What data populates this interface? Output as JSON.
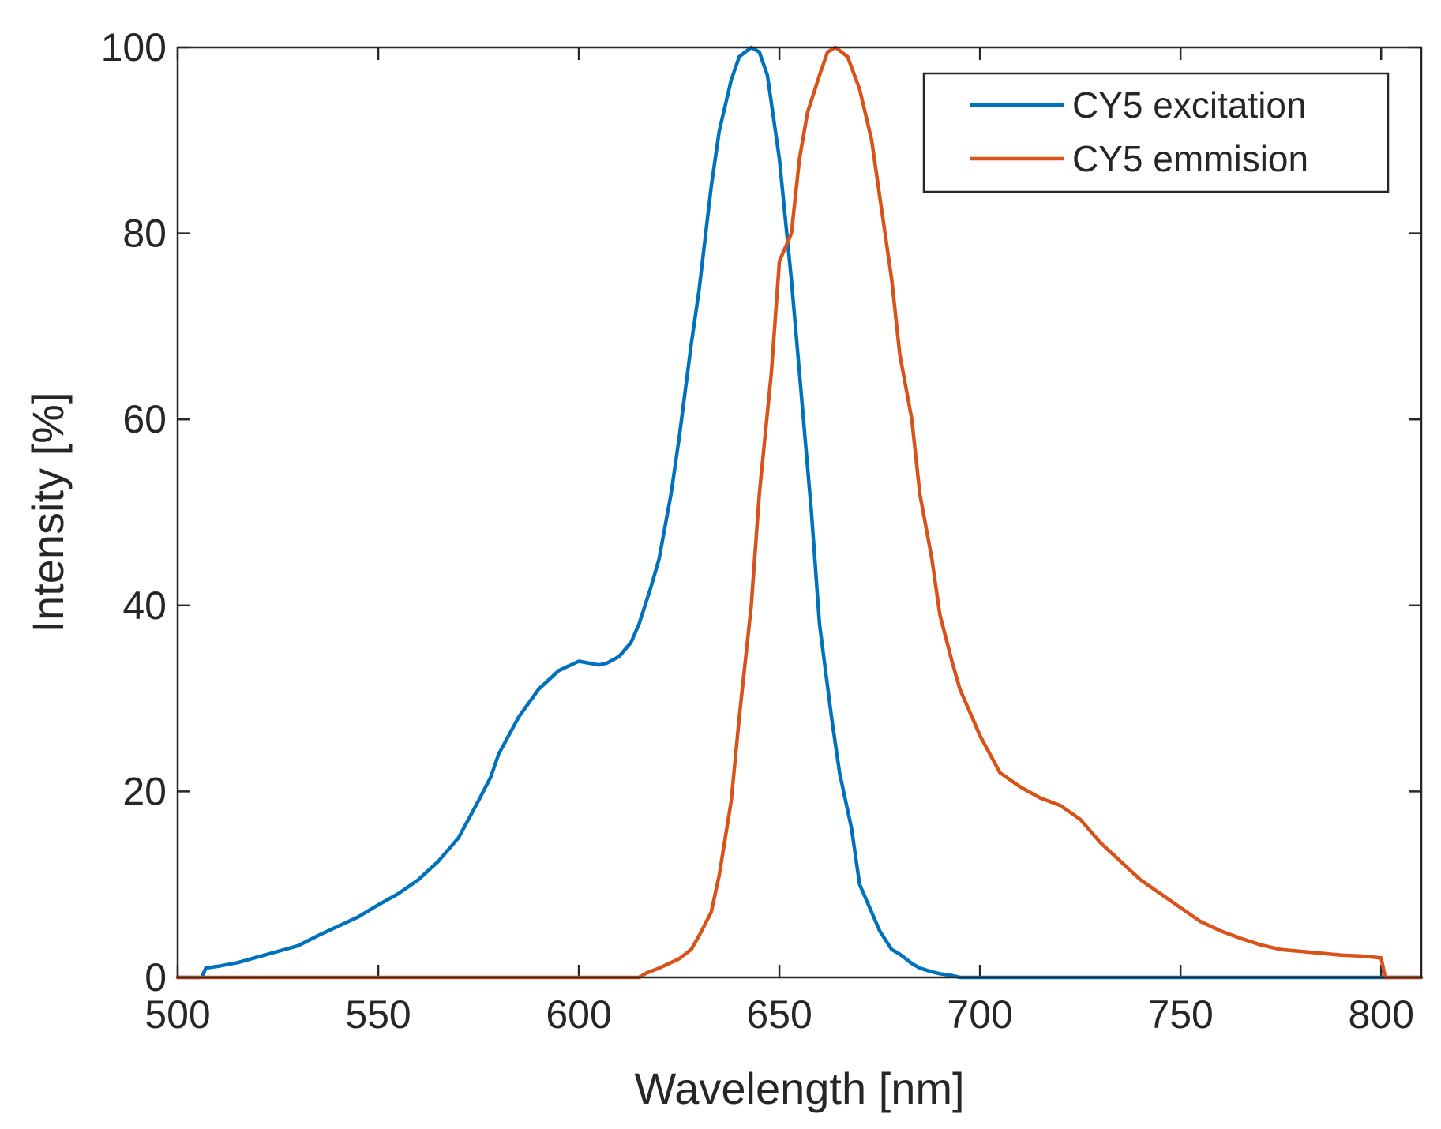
{
  "chart_data": {
    "type": "line",
    "title": "",
    "xlabel": "Wavelength [nm]",
    "ylabel": "Intensity [%]",
    "xlim": [
      500,
      810
    ],
    "ylim": [
      0,
      100
    ],
    "xticks": [
      500,
      550,
      600,
      650,
      700,
      750,
      800
    ],
    "yticks": [
      0,
      20,
      40,
      60,
      80,
      100
    ],
    "xtick_labels": [
      "500",
      "550",
      "600",
      "650",
      "700",
      "750",
      "800"
    ],
    "ytick_labels": [
      "0",
      "20",
      "40",
      "60",
      "80",
      "100"
    ],
    "grid": false,
    "legend_position": "top-right",
    "series": [
      {
        "name": "CY5 excitation",
        "color": "#0072BD",
        "x": [
          500,
          506,
          507,
          510,
          515,
          520,
          525,
          530,
          535,
          540,
          545,
          550,
          555,
          560,
          565,
          570,
          575,
          578,
          580,
          585,
          590,
          595,
          600,
          605,
          607,
          610,
          613,
          615,
          618,
          620,
          623,
          625,
          628,
          630,
          633,
          635,
          638,
          640,
          643,
          645,
          647,
          650,
          653,
          655,
          658,
          660,
          663,
          665,
          668,
          670,
          673,
          675,
          678,
          680,
          683,
          685,
          688,
          690,
          693,
          695,
          700,
          750,
          800,
          810
        ],
        "y": [
          0,
          0,
          1,
          1.2,
          1.6,
          2.2,
          2.8,
          3.4,
          4.5,
          5.5,
          6.5,
          7.8,
          9,
          10.5,
          12.5,
          15,
          19,
          21.5,
          24,
          28,
          31,
          33,
          34,
          33.6,
          33.8,
          34.5,
          36,
          38,
          42,
          45,
          52,
          58,
          68,
          74,
          85,
          91,
          96.5,
          99,
          100,
          99.5,
          97,
          88,
          75,
          65,
          50,
          38,
          28,
          22,
          16,
          10,
          7,
          5,
          3,
          2.5,
          1.5,
          1,
          0.6,
          0.4,
          0.2,
          0,
          0,
          0,
          0,
          0
        ]
      },
      {
        "name": "CY5 emmision",
        "color": "#D95319",
        "x": [
          500,
          550,
          600,
          615,
          617,
          620,
          625,
          628,
          630,
          633,
          635,
          638,
          640,
          643,
          645,
          648,
          650,
          653,
          655,
          657,
          660,
          662,
          664,
          667,
          670,
          673,
          675,
          678,
          680,
          683,
          685,
          688,
          690,
          693,
          695,
          698,
          700,
          705,
          710,
          715,
          720,
          725,
          730,
          735,
          740,
          745,
          750,
          755,
          760,
          765,
          770,
          775,
          780,
          785,
          790,
          795,
          800,
          801,
          810
        ],
        "y": [
          0,
          0,
          0,
          0,
          0.5,
          1,
          2,
          3,
          4.5,
          7,
          11,
          19,
          28,
          40,
          52,
          65,
          77,
          80,
          88,
          93,
          97,
          99.5,
          100,
          99,
          95.5,
          90,
          84,
          75,
          67,
          60,
          52,
          45,
          39,
          34,
          31,
          28,
          26,
          22,
          20.5,
          19.3,
          18.5,
          17,
          14.5,
          12.5,
          10.5,
          9,
          7.5,
          6,
          5,
          4.2,
          3.5,
          3,
          2.8,
          2.6,
          2.4,
          2.3,
          2.1,
          0,
          0
        ]
      }
    ]
  }
}
